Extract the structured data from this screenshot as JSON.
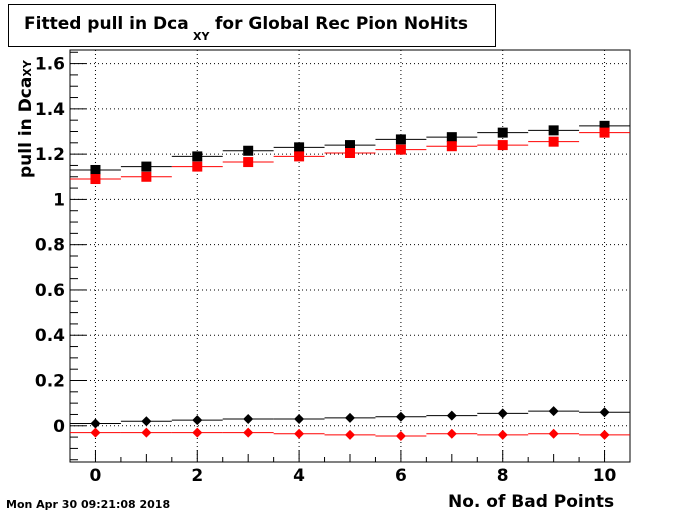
{
  "chart_data": {
    "type": "scatter",
    "title_main": "Fitted pull in Dca",
    "title_sub": "XY",
    "title_rest": " for Global Rec Pion NoHits",
    "xlabel": "No. of Bad Points",
    "ylabel_main": "pull in Dca",
    "ylabel_sub": "XY",
    "xlim": [
      -0.5,
      10.5
    ],
    "ylim": [
      -0.16,
      1.66
    ],
    "x_ticks": [
      0,
      2,
      4,
      6,
      8,
      10
    ],
    "x_tick_labels": [
      "0",
      "2",
      "4",
      "6",
      "8",
      "10"
    ],
    "y_ticks": [
      0,
      0.2,
      0.4,
      0.6,
      0.8,
      1,
      1.2,
      1.4,
      1.6
    ],
    "y_tick_labels": [
      "0",
      "0.2",
      "0.4",
      "0.6",
      "0.8",
      "1",
      "1.2",
      "1.4",
      "1.6"
    ],
    "grid": true,
    "x": [
      0,
      1,
      2,
      3,
      4,
      5,
      6,
      7,
      8,
      9,
      10
    ],
    "series": [
      {
        "marker": "square",
        "color": "#000000",
        "values": [
          1.13,
          1.145,
          1.19,
          1.215,
          1.23,
          1.24,
          1.265,
          1.275,
          1.295,
          1.305,
          1.325
        ]
      },
      {
        "marker": "square",
        "color": "#ff0000",
        "values": [
          1.09,
          1.1,
          1.145,
          1.165,
          1.19,
          1.205,
          1.22,
          1.235,
          1.24,
          1.255,
          1.295
        ]
      },
      {
        "marker": "diamond",
        "color": "#000000",
        "values": [
          0.01,
          0.02,
          0.025,
          0.03,
          0.03,
          0.035,
          0.04,
          0.045,
          0.055,
          0.065,
          0.06
        ]
      },
      {
        "marker": "diamond",
        "color": "#ff0000",
        "values": [
          -0.03,
          -0.03,
          -0.03,
          -0.03,
          -0.035,
          -0.04,
          -0.045,
          -0.035,
          -0.04,
          -0.035,
          -0.04
        ]
      }
    ]
  },
  "footer": {
    "timestamp": "Mon Apr 30 09:21:08 2018"
  }
}
